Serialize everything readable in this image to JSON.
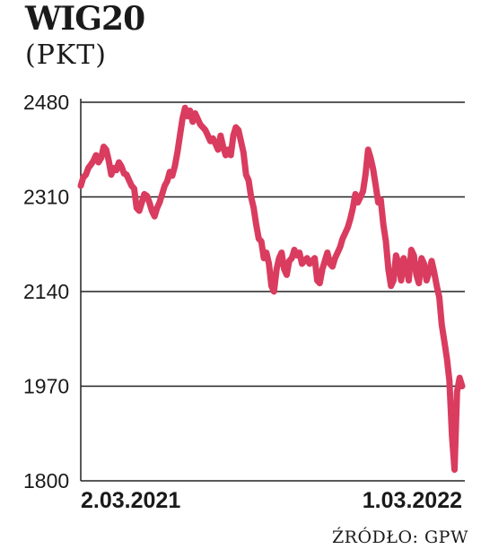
{
  "title": "WIG20",
  "unit": "(PKT)",
  "source": "ŹRÓDŁO: GPW",
  "line_color": "#d93c5f",
  "chart_data": {
    "type": "line",
    "title": "WIG20",
    "ylabel": "(PKT)",
    "ylim": [
      1800,
      2480
    ],
    "yticks": [
      2480,
      2310,
      2140,
      1970,
      1800
    ],
    "x_tick_labels": [
      "2.03.2021",
      "1.03.2022"
    ],
    "grid": "horizontal",
    "series": [
      {
        "values": [
          2330,
          2345,
          2350,
          2362,
          2368,
          2375,
          2385,
          2372,
          2380,
          2400,
          2395,
          2375,
          2350,
          2362,
          2358,
          2372,
          2365,
          2352,
          2350,
          2340,
          2330,
          2325,
          2290,
          2285,
          2300,
          2315,
          2312,
          2300,
          2285,
          2275,
          2290,
          2300,
          2315,
          2330,
          2338,
          2355,
          2348,
          2365,
          2390,
          2420,
          2450,
          2470,
          2455,
          2465,
          2445,
          2460,
          2450,
          2440,
          2435,
          2430,
          2420,
          2410,
          2415,
          2405,
          2395,
          2420,
          2400,
          2385,
          2395,
          2385,
          2420,
          2435,
          2430,
          2410,
          2390,
          2350,
          2340,
          2310,
          2290,
          2260,
          2235,
          2230,
          2200,
          2210,
          2190,
          2150,
          2140,
          2180,
          2200,
          2210,
          2180,
          2170,
          2195,
          2200,
          2215,
          2205,
          2210,
          2190,
          2195,
          2200,
          2190,
          2195,
          2200,
          2160,
          2155,
          2180,
          2195,
          2210,
          2190,
          2185,
          2200,
          2210,
          2220,
          2235,
          2245,
          2255,
          2270,
          2290,
          2315,
          2300,
          2310,
          2320,
          2350,
          2395,
          2380,
          2360,
          2330,
          2300,
          2305,
          2260,
          2230,
          2180,
          2150,
          2160,
          2205,
          2190,
          2160,
          2200,
          2185,
          2160,
          2215,
          2205,
          2170,
          2155,
          2200,
          2190,
          2160,
          2175,
          2195,
          2175,
          2150,
          2130,
          2080,
          2050,
          2020,
          1980,
          1880,
          1820,
          1960,
          1985,
          1970
        ]
      }
    ]
  }
}
